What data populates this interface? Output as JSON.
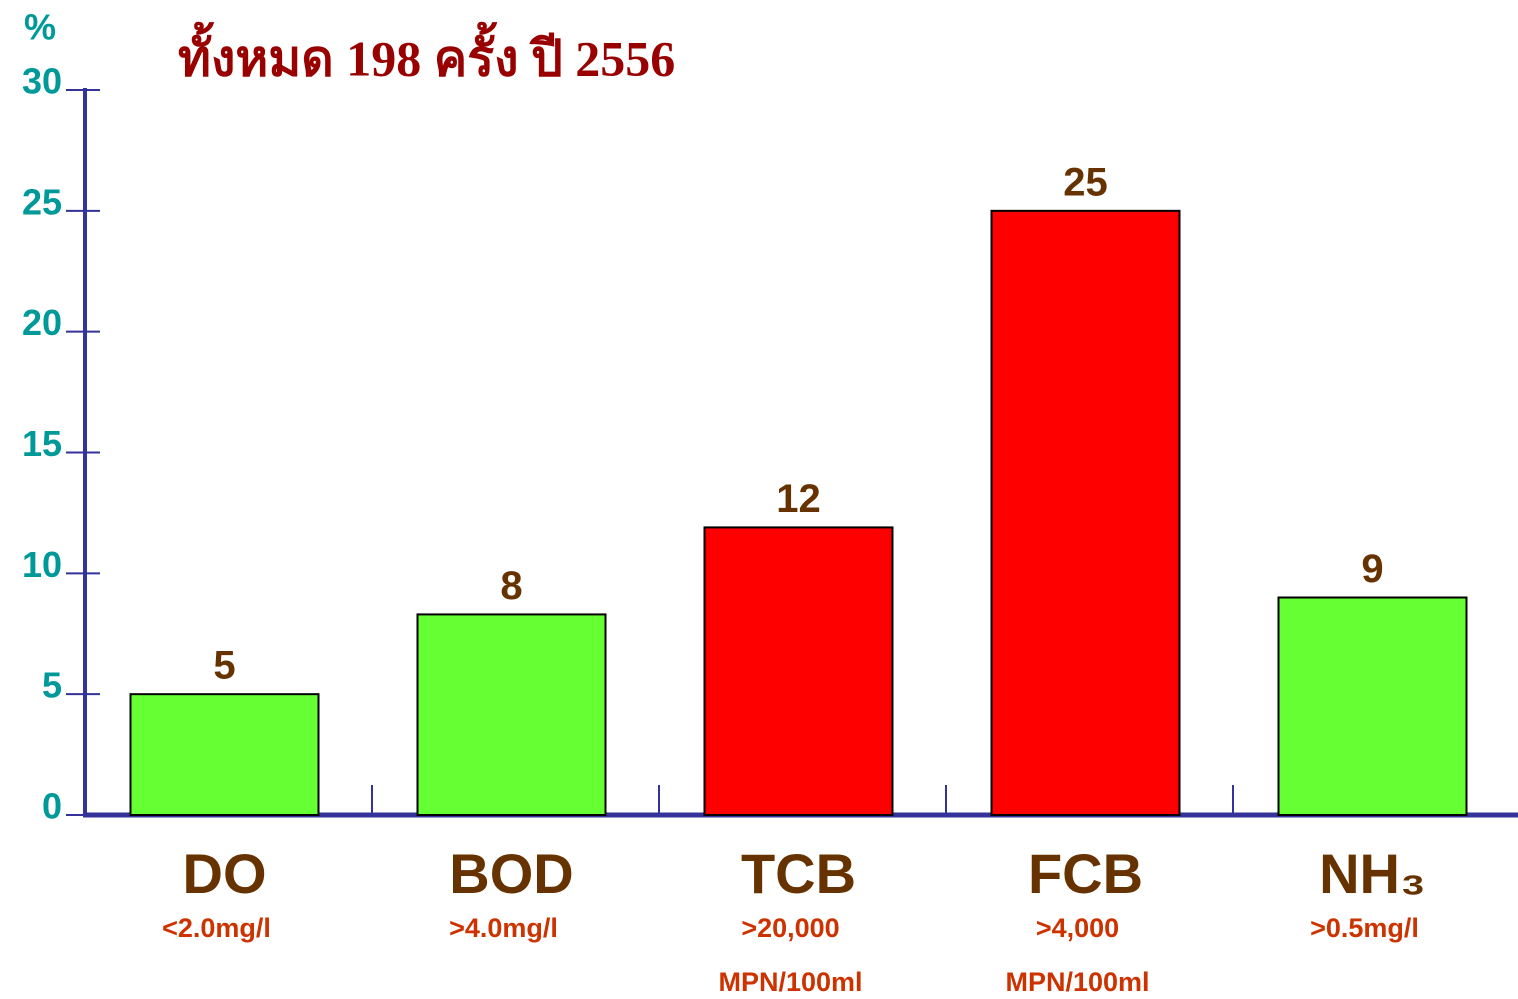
{
  "chart_data": {
    "type": "bar",
    "title": "ทั้งหมด 198 ครั้ง ปี 2556",
    "y_unit": "%",
    "categories": [
      "DO",
      "BOD",
      "TCB",
      "FCB",
      "NH₃"
    ],
    "category_notes": [
      [
        "<2.0mg/l"
      ],
      [
        ">4.0mg/l"
      ],
      [
        ">20,000",
        "MPN/100ml"
      ],
      [
        ">4,000",
        "MPN/100ml"
      ],
      [
        ">0.5mg/l"
      ]
    ],
    "values": [
      5,
      8.3,
      11.9,
      25,
      9
    ],
    "value_labels": [
      "5",
      "8",
      "12",
      "25",
      "9"
    ],
    "colors": [
      "#66ff33",
      "#66ff33",
      "#ff0000",
      "#ff0000",
      "#66ff33"
    ],
    "ylim": [
      0,
      30
    ],
    "yticks": [
      0,
      5,
      10,
      15,
      20,
      25,
      30
    ],
    "grid": false
  }
}
